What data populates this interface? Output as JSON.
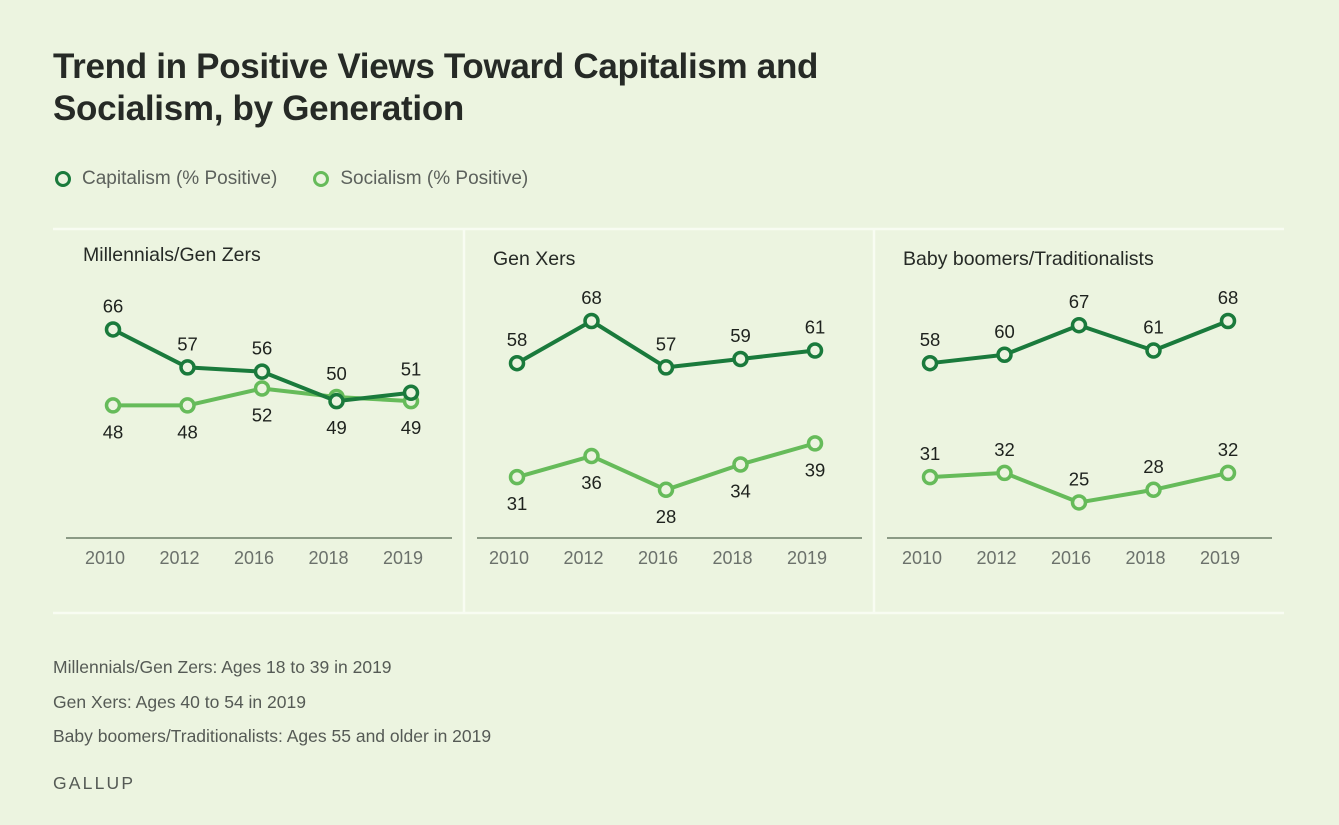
{
  "title": "Trend in Positive Views Toward Capitalism and Socialism, by Generation",
  "legend": [
    {
      "label": "Capitalism (% Positive)",
      "color": "#1a7a3c"
    },
    {
      "label": "Socialism (% Positive)",
      "color": "#66bb5a"
    }
  ],
  "notes": [
    "Millennials/Gen Zers: Ages 18 to 39 in 2019",
    "Gen Xers: Ages 40 to 54 in 2019",
    "Baby boomers/Traditionalists: Ages 55 and older in 2019"
  ],
  "source": "GALLUP",
  "colors": {
    "capitalism": "#1a7a3c",
    "socialism": "#66bb5a",
    "background": "#ecf4e0",
    "axis": "#8b9a85"
  },
  "chart_data": [
    {
      "type": "line",
      "title": "Millennials/Gen Zers",
      "categories": [
        "2010",
        "2012",
        "2016",
        "2018",
        "2019"
      ],
      "series": [
        {
          "name": "Capitalism (% Positive)",
          "values": [
            66,
            57,
            56,
            49,
            51
          ]
        },
        {
          "name": "Socialism (% Positive)",
          "values": [
            48,
            48,
            52,
            50,
            49
          ]
        }
      ],
      "xlabel": "",
      "ylabel": "",
      "grid": false
    },
    {
      "type": "line",
      "title": "Gen Xers",
      "categories": [
        "2010",
        "2012",
        "2016",
        "2018",
        "2019"
      ],
      "series": [
        {
          "name": "Capitalism (% Positive)",
          "values": [
            58,
            68,
            57,
            59,
            61
          ]
        },
        {
          "name": "Socialism (% Positive)",
          "values": [
            31,
            36,
            28,
            34,
            39
          ]
        }
      ],
      "xlabel": "",
      "ylabel": "",
      "grid": false
    },
    {
      "type": "line",
      "title": "Baby boomers/Traditionalists",
      "categories": [
        "2010",
        "2012",
        "2016",
        "2018",
        "2019"
      ],
      "series": [
        {
          "name": "Capitalism (% Positive)",
          "values": [
            58,
            60,
            67,
            61,
            68
          ]
        },
        {
          "name": "Socialism (% Positive)",
          "values": [
            31,
            32,
            25,
            28,
            32
          ]
        }
      ],
      "xlabel": "",
      "ylabel": "",
      "grid": false
    }
  ]
}
